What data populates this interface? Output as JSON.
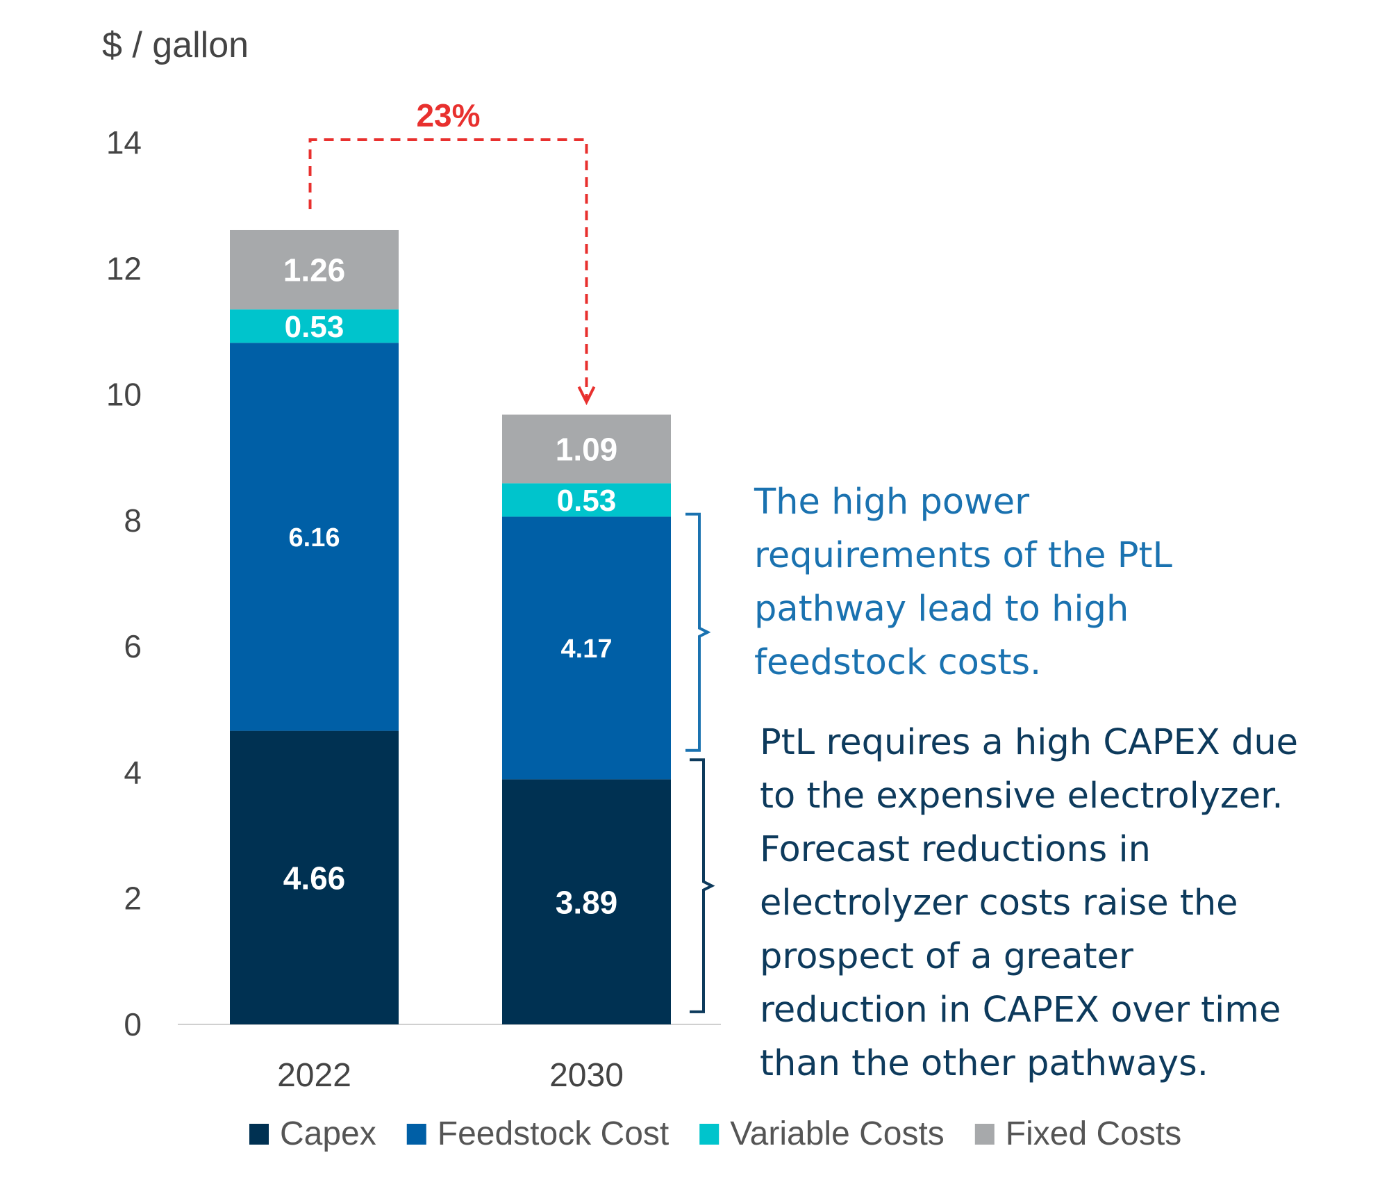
{
  "chart_data": {
    "type": "bar",
    "stacked": true,
    "ylabel": "$ / gallon",
    "ylim": [
      0,
      14
    ],
    "yticks": [
      0,
      2,
      4,
      6,
      8,
      10,
      12,
      14
    ],
    "categories": [
      "2022",
      "2030"
    ],
    "series": [
      {
        "name": "Capex",
        "values": [
          4.66,
          3.89
        ],
        "color": "#003152"
      },
      {
        "name": "Feedstock Cost",
        "values": [
          6.16,
          4.17
        ],
        "color": "#005fa6"
      },
      {
        "name": "Variable Costs",
        "values": [
          0.53,
          0.53
        ],
        "color": "#00c4cc"
      },
      {
        "name": "Fixed Costs",
        "values": [
          1.26,
          1.09
        ],
        "color": "#a7a9ab"
      }
    ],
    "data_labels": [
      [
        "4.66",
        "3.89"
      ],
      [
        "6.16",
        "4.17"
      ],
      [
        "0.53",
        "0.53"
      ],
      [
        "1.26",
        "1.09"
      ]
    ],
    "legend": "bottom",
    "grid": false,
    "change_annotation": {
      "text": "23%",
      "color": "#e8302e"
    },
    "annotations": [
      {
        "text_lines": [
          "The high power",
          "requirements of the PtL",
          "pathway lead to high",
          "feedstock costs."
        ],
        "color": "#1a72b0",
        "brackets_series": "Feedstock Cost"
      },
      {
        "text_lines": [
          "PtL requires a high CAPEX due",
          "to the expensive electrolyzer.",
          "Forecast reductions in",
          "electrolyzer costs raise the",
          "prospect of a greater",
          "reduction in CAPEX over time",
          "than the other pathways."
        ],
        "color": "#0d3a5c",
        "brackets_series": "Capex"
      }
    ]
  }
}
